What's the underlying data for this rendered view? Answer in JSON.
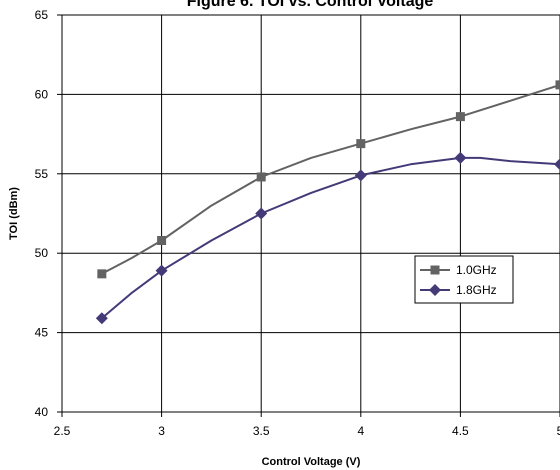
{
  "chart_data": {
    "type": "line",
    "title": "Figure 6. TOI vs. Control Voltage",
    "xlabel": "Control Voltage (V)",
    "ylabel": "TOI (dBm)",
    "xlim": [
      2.5,
      5
    ],
    "ylim": [
      40,
      65
    ],
    "xticks": [
      "2.5",
      "3",
      "3.5",
      "4",
      "4.5",
      "5"
    ],
    "yticks": [
      "40",
      "45",
      "50",
      "55",
      "60",
      "65"
    ],
    "grid": true,
    "legend_position": "right-middle",
    "series": [
      {
        "name": "1.0GHz",
        "color": "#636363",
        "marker": "square",
        "x": [
          2.7,
          3.0,
          3.5,
          4.0,
          4.5,
          5.0
        ],
        "y": [
          48.7,
          50.8,
          54.8,
          56.9,
          58.6,
          60.6
        ],
        "curve": [
          [
            2.7,
            48.7
          ],
          [
            2.85,
            49.7
          ],
          [
            3.0,
            50.8
          ],
          [
            3.25,
            53.0
          ],
          [
            3.5,
            54.8
          ],
          [
            3.75,
            56.0
          ],
          [
            4.0,
            56.9
          ],
          [
            4.25,
            57.8
          ],
          [
            4.5,
            58.6
          ],
          [
            4.75,
            59.6
          ],
          [
            5.0,
            60.6
          ]
        ]
      },
      {
        "name": "1.8GHz",
        "color": "#453a78",
        "marker": "diamond",
        "x": [
          2.7,
          3.0,
          3.5,
          4.0,
          4.5,
          5.0
        ],
        "y": [
          45.9,
          48.9,
          52.5,
          54.9,
          56.0,
          55.6
        ],
        "curve": [
          [
            2.7,
            45.9
          ],
          [
            2.85,
            47.5
          ],
          [
            3.0,
            48.9
          ],
          [
            3.25,
            50.8
          ],
          [
            3.5,
            52.5
          ],
          [
            3.75,
            53.8
          ],
          [
            4.0,
            54.9
          ],
          [
            4.25,
            55.6
          ],
          [
            4.5,
            56.0
          ],
          [
            4.6,
            56.0
          ],
          [
            4.75,
            55.8
          ],
          [
            5.0,
            55.6
          ]
        ]
      }
    ]
  }
}
